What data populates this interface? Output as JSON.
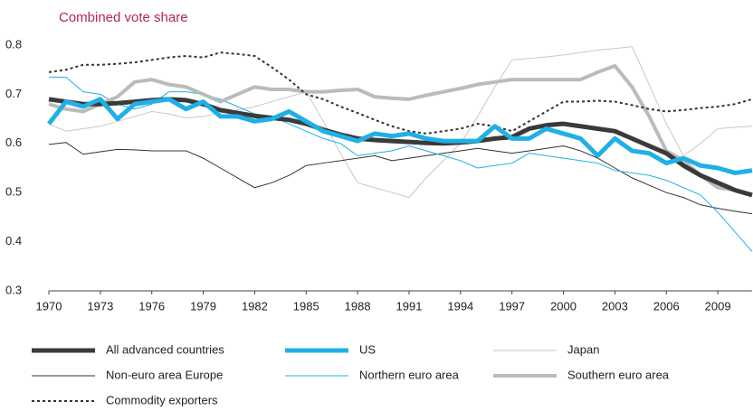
{
  "chart_data": {
    "type": "line",
    "title": "Combined vote share",
    "x": [
      1970,
      1971,
      1972,
      1973,
      1974,
      1975,
      1976,
      1977,
      1978,
      1979,
      1980,
      1981,
      1982,
      1983,
      1984,
      1985,
      1986,
      1987,
      1988,
      1989,
      1990,
      1991,
      1992,
      1993,
      1994,
      1995,
      1996,
      1997,
      1998,
      1999,
      2000,
      2001,
      2002,
      2003,
      2004,
      2005,
      2006,
      2007,
      2008,
      2009,
      2010,
      2011
    ],
    "xlim": [
      1970,
      2011
    ],
    "xticks": [
      1970,
      1973,
      1976,
      1979,
      1982,
      1985,
      1988,
      1991,
      1994,
      1997,
      2000,
      2003,
      2006,
      2009
    ],
    "ylim": [
      0.3,
      0.8
    ],
    "yticks": [
      0.3,
      0.4,
      0.5,
      0.6,
      0.7,
      0.8
    ],
    "grid": false,
    "series": [
      {
        "name": "All advanced countries",
        "color": "#3a3a3a",
        "values": [
          0.69,
          0.685,
          0.68,
          0.68,
          0.682,
          0.685,
          0.688,
          0.69,
          0.688,
          0.68,
          0.668,
          0.662,
          0.656,
          0.652,
          0.648,
          0.64,
          0.628,
          0.618,
          0.61,
          0.607,
          0.605,
          0.603,
          0.601,
          0.6,
          0.602,
          0.605,
          0.61,
          0.613,
          0.63,
          0.637,
          0.64,
          0.635,
          0.63,
          0.625,
          0.61,
          0.595,
          0.58,
          0.555,
          0.535,
          0.52,
          0.505,
          0.495
        ]
      },
      {
        "name": "US",
        "color": "#1fb0e6",
        "values": [
          0.64,
          0.685,
          0.675,
          0.69,
          0.65,
          0.68,
          0.685,
          0.69,
          0.67,
          0.685,
          0.655,
          0.655,
          0.645,
          0.65,
          0.665,
          0.645,
          0.625,
          0.615,
          0.605,
          0.62,
          0.615,
          0.62,
          0.61,
          0.605,
          0.605,
          0.605,
          0.635,
          0.61,
          0.61,
          0.63,
          0.62,
          0.61,
          0.575,
          0.61,
          0.585,
          0.58,
          0.56,
          0.57,
          0.555,
          0.55,
          0.54,
          0.545
        ]
      },
      {
        "name": "Japan",
        "color": "#c8c8c8",
        "values": [
          0.64,
          0.625,
          0.63,
          0.635,
          0.645,
          0.655,
          0.665,
          0.66,
          0.652,
          0.655,
          0.662,
          0.668,
          0.675,
          0.685,
          0.695,
          0.705,
          0.645,
          0.58,
          0.52,
          0.51,
          0.5,
          0.49,
          0.53,
          0.565,
          0.6,
          0.655,
          0.715,
          0.77,
          0.773,
          0.776,
          0.78,
          0.785,
          0.79,
          0.793,
          0.797,
          0.72,
          0.64,
          0.575,
          0.6,
          0.63,
          0.633,
          0.635
        ]
      },
      {
        "name": "Non-euro area Europe",
        "color": "#333333",
        "values": [
          0.598,
          0.602,
          0.578,
          0.583,
          0.588,
          0.587,
          0.585,
          0.585,
          0.585,
          0.57,
          0.55,
          0.53,
          0.51,
          0.52,
          0.535,
          0.555,
          0.56,
          0.565,
          0.57,
          0.575,
          0.565,
          0.57,
          0.575,
          0.58,
          0.585,
          0.59,
          0.585,
          0.58,
          0.585,
          0.59,
          0.595,
          0.585,
          0.57,
          0.55,
          0.53,
          0.515,
          0.5,
          0.49,
          0.475,
          0.468,
          0.462,
          0.457
        ]
      },
      {
        "name": "Northern euro area",
        "color": "#1fb0e6",
        "values": [
          0.735,
          0.735,
          0.705,
          0.7,
          0.68,
          0.67,
          0.68,
          0.705,
          0.705,
          0.7,
          0.69,
          0.675,
          0.66,
          0.655,
          0.64,
          0.625,
          0.61,
          0.6,
          0.575,
          0.58,
          0.585,
          0.595,
          0.585,
          0.575,
          0.565,
          0.55,
          0.555,
          0.56,
          0.58,
          0.575,
          0.57,
          0.565,
          0.56,
          0.545,
          0.54,
          0.535,
          0.525,
          0.51,
          0.495,
          0.46,
          0.42,
          0.38
        ]
      },
      {
        "name": "Southern euro area",
        "color": "#bbbbbb",
        "values": [
          0.68,
          0.67,
          0.665,
          0.68,
          0.695,
          0.725,
          0.73,
          0.72,
          0.715,
          0.7,
          0.685,
          0.7,
          0.715,
          0.71,
          0.71,
          0.705,
          0.705,
          0.708,
          0.71,
          0.695,
          0.692,
          0.69,
          0.698,
          0.705,
          0.712,
          0.72,
          0.725,
          0.73,
          0.73,
          0.73,
          0.73,
          0.73,
          0.745,
          0.758,
          0.715,
          0.655,
          0.585,
          0.565,
          0.535,
          0.51,
          0.505,
          0.495
        ]
      },
      {
        "name": "Commodity exporters",
        "color": "#333333",
        "values": [
          0.745,
          0.75,
          0.76,
          0.76,
          0.762,
          0.765,
          0.77,
          0.775,
          0.778,
          0.775,
          0.785,
          0.782,
          0.778,
          0.755,
          0.73,
          0.7,
          0.69,
          0.675,
          0.662,
          0.648,
          0.635,
          0.625,
          0.62,
          0.625,
          0.63,
          0.64,
          0.635,
          0.625,
          0.645,
          0.665,
          0.685,
          0.685,
          0.687,
          0.685,
          0.678,
          0.67,
          0.665,
          0.668,
          0.672,
          0.675,
          0.68,
          0.69
        ]
      }
    ]
  }
}
